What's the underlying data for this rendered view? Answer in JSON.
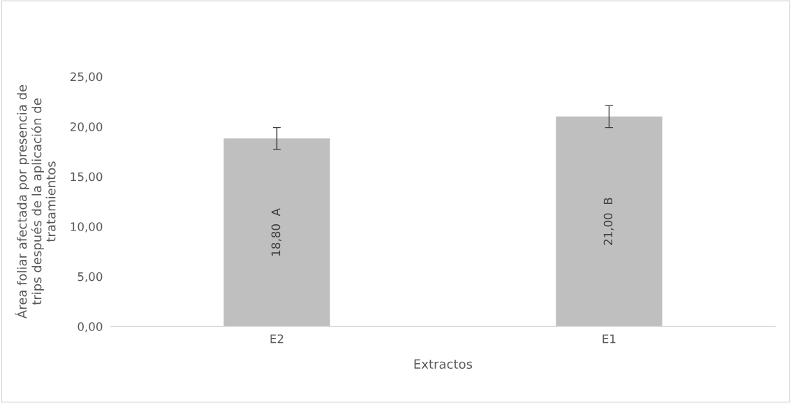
{
  "chart_data": {
    "type": "bar",
    "xlabel": "Extractos",
    "ylabel": "Área foliar afectada por presencia de trips después de la aplicación de tratamientos",
    "categories": [
      "E2",
      "E1"
    ],
    "series": [
      {
        "color": "#bfbfbf",
        "values": [
          18.8,
          21.0
        ],
        "errors": [
          1.1,
          1.1
        ],
        "value_labels": [
          "18,80  A",
          "21,00  B"
        ]
      }
    ],
    "ylim": [
      0,
      25
    ],
    "yticks": [
      {
        "value": 0,
        "label": "0,00"
      },
      {
        "value": 5,
        "label": "5,00"
      },
      {
        "value": 10,
        "label": "10,00"
      },
      {
        "value": 15,
        "label": "15,00"
      },
      {
        "value": 20,
        "label": "20,00"
      },
      {
        "value": 25,
        "label": "25,00"
      }
    ],
    "grid": false
  }
}
